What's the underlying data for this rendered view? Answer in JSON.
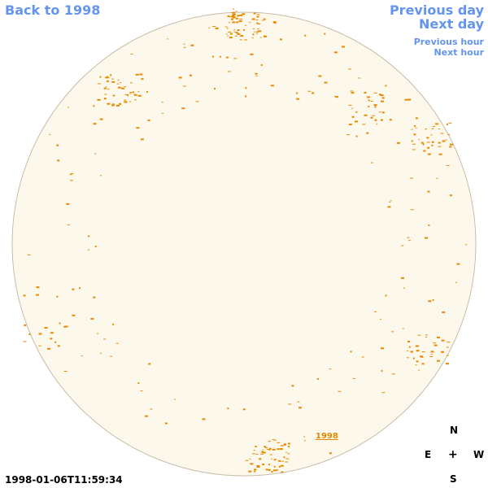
{
  "nav": {
    "back": "Back to 1998",
    "previous_day": "Previous day",
    "next_day": "Next day",
    "previous_hour": "Previous hour",
    "next_hour": "Next hour"
  },
  "timestamp": "1998-01-06T11:59:34",
  "compass": {
    "north": "N",
    "east": "E",
    "center": "+",
    "west": "W",
    "south": "S"
  },
  "disk_label": "1998"
}
